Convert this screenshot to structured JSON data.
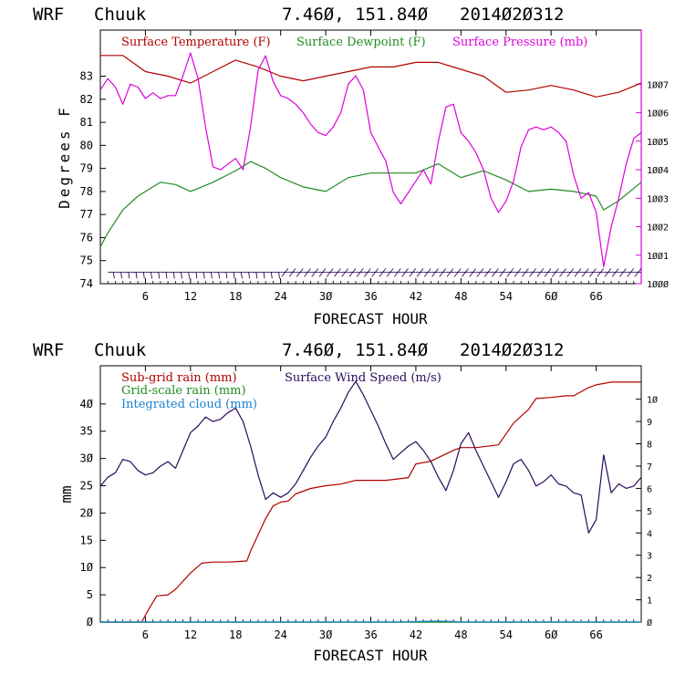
{
  "panels": [
    {
      "header": {
        "model": "WRF",
        "station": "Chuuk",
        "coords": "7.46Ø, 151.84Ø",
        "init": "2014Ø2Ø312"
      },
      "xlabel": "FORECAST HOUR",
      "ylabel": "Degrees F"
    },
    {
      "header": {
        "model": "WRF",
        "station": "Chuuk",
        "coords": "7.46Ø, 151.84Ø",
        "init": "2014Ø2Ø312"
      },
      "xlabel": "FORECAST HOUR",
      "ylabel": "mm"
    }
  ],
  "colors": {
    "temperature": "#b00000",
    "dewpoint": "#228b22",
    "pressure": "#dd00dd",
    "subgrid_rain": "#b00000",
    "gridscale_rain": "#228b22",
    "cloud": "#1a7fcf",
    "wind": "#2a0a5a",
    "barbs": "#2a0a5a"
  },
  "chart_data": [
    {
      "type": "line",
      "xlim": [
        0,
        72
      ],
      "xticks": [
        6,
        12,
        18,
        24,
        30,
        36,
        42,
        48,
        54,
        60,
        66
      ],
      "xtick_labels": [
        "6",
        "12",
        "18",
        "24",
        "3Ø",
        "36",
        "42",
        "48",
        "54",
        "6Ø",
        "66"
      ],
      "ylim": [
        74,
        85
      ],
      "yticks": [
        74,
        75,
        76,
        77,
        78,
        79,
        80,
        81,
        82,
        83
      ],
      "ytick_labels": [
        "74",
        "75",
        "76",
        "77",
        "78",
        "79",
        "80",
        "81",
        "82",
        "83"
      ],
      "y2lim": [
        1000,
        1008.9
      ],
      "y2ticks": [
        1000,
        1001,
        1002,
        1003,
        1004,
        1005,
        1006,
        1007
      ],
      "y2tick_labels": [
        "1ØØØ",
        "1ØØ1",
        "1ØØ2",
        "1ØØ3",
        "1ØØ4",
        "1ØØ5",
        "1ØØ6",
        "1ØØ7"
      ],
      "series": [
        {
          "name": "Surface Temperature (F)",
          "axis": "left",
          "x": [
            0,
            3,
            6,
            9,
            12,
            15,
            18,
            21,
            24,
            27,
            30,
            33,
            36,
            39,
            42,
            45,
            48,
            51,
            54,
            57,
            60,
            63,
            66,
            69,
            72
          ],
          "y": [
            83.9,
            83.9,
            83.2,
            83.0,
            82.7,
            83.2,
            83.7,
            83.4,
            83.0,
            82.8,
            83.0,
            83.2,
            83.4,
            83.4,
            83.6,
            83.6,
            83.3,
            83.0,
            82.3,
            82.4,
            82.6,
            82.4,
            82.1,
            82.3,
            82.7
          ]
        },
        {
          "name": "Surface Dewpoint (F)",
          "axis": "left",
          "x": [
            0,
            1,
            3,
            5,
            8,
            10,
            12,
            15,
            18,
            20,
            22,
            24,
            27,
            30,
            33,
            36,
            39,
            42,
            45,
            48,
            51,
            54,
            57,
            60,
            63,
            66,
            67,
            69,
            72
          ],
          "y": [
            75.6,
            76.2,
            77.2,
            77.8,
            78.4,
            78.3,
            78.0,
            78.4,
            78.9,
            79.3,
            79.0,
            78.6,
            78.2,
            78.0,
            78.6,
            78.8,
            78.8,
            78.8,
            79.2,
            78.6,
            78.9,
            78.5,
            78.0,
            78.1,
            78.0,
            77.8,
            77.2,
            77.6,
            78.4
          ]
        },
        {
          "name": "Surface Pressure (mb)",
          "axis": "right",
          "x": [
            0,
            1,
            2,
            3,
            4,
            5,
            6,
            7,
            8,
            9,
            10,
            11,
            12,
            13,
            14,
            15,
            16,
            17,
            18,
            19,
            20,
            21,
            22,
            23,
            24,
            25,
            26,
            27,
            28,
            29,
            30,
            31,
            32,
            33,
            34,
            35,
            36,
            37,
            38,
            39,
            40,
            41,
            42,
            43,
            44,
            45,
            46,
            47,
            48,
            49,
            50,
            51,
            52,
            53,
            54,
            55,
            56,
            57,
            58,
            59,
            60,
            61,
            62,
            63,
            64,
            65,
            66,
            67,
            68,
            69,
            70,
            71,
            72
          ],
          "y": [
            1006.8,
            1007.2,
            1006.9,
            1006.3,
            1007.0,
            1006.9,
            1006.5,
            1006.7,
            1006.5,
            1006.6,
            1006.6,
            1007.3,
            1008.1,
            1007.2,
            1005.5,
            1004.1,
            1004.0,
            1004.2,
            1004.4,
            1004.0,
            1005.5,
            1007.5,
            1008.0,
            1007.1,
            1006.6,
            1006.5,
            1006.3,
            1006.0,
            1005.6,
            1005.3,
            1005.2,
            1005.5,
            1006.0,
            1007.0,
            1007.3,
            1006.8,
            1005.3,
            1004.8,
            1004.3,
            1003.2,
            1002.8,
            1003.2,
            1003.6,
            1004.0,
            1003.5,
            1005.0,
            1006.2,
            1006.3,
            1005.3,
            1005.0,
            1004.6,
            1004.0,
            1003.0,
            1002.5,
            1002.9,
            1003.6,
            1004.8,
            1005.4,
            1005.5,
            1005.4,
            1005.5,
            1005.3,
            1005.0,
            1003.8,
            1003.0,
            1003.2,
            1002.5,
            1000.6,
            1002.0,
            1003.0,
            1004.2,
            1005.1,
            1005.3
          ]
        }
      ],
      "wind_barbs": {
        "axis": "left",
        "y": 74.5,
        "x_start": 1.5,
        "x_end": 71.5,
        "step": 1
      }
    },
    {
      "type": "line",
      "xlim": [
        0,
        72
      ],
      "xticks": [
        6,
        12,
        18,
        24,
        30,
        36,
        42,
        48,
        54,
        60,
        66
      ],
      "xtick_labels": [
        "6",
        "12",
        "18",
        "24",
        "3Ø",
        "36",
        "42",
        "48",
        "54",
        "6Ø",
        "66"
      ],
      "ylim": [
        0,
        47
      ],
      "yticks": [
        0,
        5,
        10,
        15,
        20,
        25,
        30,
        35,
        40
      ],
      "ytick_labels": [
        "Ø",
        "5",
        "1Ø",
        "15",
        "2Ø",
        "25",
        "3Ø",
        "35",
        "4Ø"
      ],
      "y2lim": [
        0,
        11.5
      ],
      "y2ticks": [
        0,
        1,
        2,
        3,
        4,
        5,
        6,
        7,
        8,
        9,
        10
      ],
      "y2tick_labels": [
        "Ø",
        "1",
        "2",
        "3",
        "4",
        "5",
        "6",
        "7",
        "8",
        "9",
        "1Ø"
      ],
      "series": [
        {
          "name": "Sub-grid rain (mm)",
          "axis": "left",
          "x": [
            0,
            5.5,
            6.5,
            7.5,
            9,
            10,
            12,
            13.5,
            15,
            17,
            19.5,
            20,
            21,
            22,
            23,
            24,
            25,
            26,
            28,
            30,
            32,
            34,
            36,
            38,
            41,
            42,
            44,
            47,
            48,
            50,
            53,
            54,
            55,
            57,
            58,
            60,
            62,
            63,
            65,
            66,
            68,
            72
          ],
          "y": [
            0,
            0,
            2.5,
            4.8,
            5.0,
            6.0,
            9.0,
            10.8,
            11.0,
            11.0,
            11.2,
            13.0,
            16.0,
            19.0,
            21.3,
            22.0,
            22.2,
            23.5,
            24.5,
            25.0,
            25.3,
            26.0,
            26.0,
            26.0,
            26.5,
            29.0,
            29.5,
            31.5,
            32.0,
            32.0,
            32.5,
            34.5,
            36.5,
            39.0,
            41.0,
            41.2,
            41.5,
            41.5,
            43.0,
            43.5,
            44.0,
            44.0
          ]
        },
        {
          "name": "Grid-scale rain (mm)",
          "axis": "left",
          "x": [
            0,
            72
          ],
          "y": [
            0,
            0
          ]
        },
        {
          "name": "Integrated cloud (mm)",
          "axis": "left",
          "x": [
            0,
            40,
            42,
            45,
            47,
            48,
            72
          ],
          "y": [
            0,
            0,
            0.1,
            0.2,
            0.1,
            0,
            0
          ]
        },
        {
          "name": "Surface Wind Speed (m/s)",
          "axis": "right",
          "x": [
            0,
            1,
            2,
            3,
            4,
            5,
            6,
            7,
            8,
            9,
            10,
            11,
            12,
            13,
            14,
            15,
            16,
            17,
            18,
            19,
            20,
            21,
            22,
            23,
            24,
            25,
            26,
            27,
            28,
            29,
            30,
            31,
            32,
            33,
            34,
            35,
            36,
            37,
            38,
            39,
            40,
            41,
            42,
            43,
            44,
            45,
            46,
            47,
            48,
            49,
            50,
            51,
            52,
            53,
            54,
            55,
            56,
            57,
            58,
            59,
            60,
            61,
            62,
            63,
            64,
            65,
            66,
            67,
            68,
            69,
            70,
            71,
            72
          ],
          "y": [
            6.1,
            6.5,
            6.7,
            7.3,
            7.2,
            6.8,
            6.6,
            6.7,
            7.0,
            7.2,
            6.9,
            7.7,
            8.5,
            8.8,
            9.2,
            9.0,
            9.1,
            9.4,
            9.6,
            9.0,
            7.9,
            6.6,
            5.5,
            5.8,
            5.6,
            5.8,
            6.2,
            6.8,
            7.4,
            7.9,
            8.3,
            9.0,
            9.6,
            10.3,
            10.8,
            10.2,
            9.5,
            8.8,
            8.0,
            7.3,
            7.6,
            7.9,
            8.1,
            7.7,
            7.2,
            6.5,
            5.9,
            6.8,
            8.0,
            8.5,
            7.7,
            7.0,
            6.3,
            5.6,
            6.3,
            7.1,
            7.3,
            6.8,
            6.1,
            6.3,
            6.6,
            6.2,
            6.1,
            5.8,
            5.7,
            4.0,
            4.6,
            7.5,
            5.8,
            6.2,
            6.0,
            6.1,
            6.5
          ]
        }
      ]
    }
  ]
}
